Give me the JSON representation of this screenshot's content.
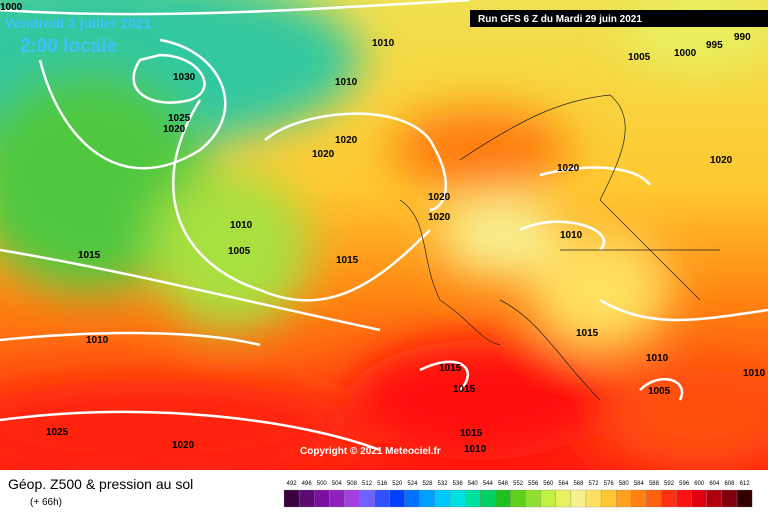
{
  "header": {
    "title": "Vendredi 2 juillet 2021",
    "time": "2:00 locale",
    "run": "Run GFS 6 Z du Mardi 29 juin 2021"
  },
  "isobar_labels": [
    "1000",
    "1010",
    "1005",
    "1000",
    "995",
    "990",
    "1030",
    "1010",
    "1025",
    "1020",
    "1020",
    "1020",
    "1020",
    "1020",
    "1020",
    "1020",
    "1010",
    "1005",
    "1015",
    "1015",
    "1010",
    "1010",
    "1015",
    "1010",
    "1010",
    "1015",
    "1015",
    "1005",
    "1015",
    "1010",
    "1025",
    "1020"
  ],
  "copyright": "Copyright © 2021 Meteociel.fr",
  "legend": {
    "title": "Géop. Z500 & pression au sol",
    "lead": "(+ 66h)",
    "scale": [
      492,
      496,
      500,
      504,
      508,
      512,
      516,
      520,
      524,
      528,
      532,
      536,
      540,
      544,
      548,
      552,
      556,
      560,
      564,
      568,
      572,
      576,
      580,
      584,
      588,
      592,
      596,
      600,
      604,
      608,
      612
    ],
    "colors": [
      "#3a0040",
      "#5a0a70",
      "#7a10a0",
      "#9020c0",
      "#a040e0",
      "#7060ff",
      "#3050ff",
      "#0040ff",
      "#0070ff",
      "#00a0ff",
      "#00c8ff",
      "#00e0e0",
      "#00e0a0",
      "#00d060",
      "#20c020",
      "#60d020",
      "#90e030",
      "#c0f040",
      "#e8f060",
      "#f8f090",
      "#ffe060",
      "#ffc830",
      "#ffa020",
      "#ff8010",
      "#ff6010",
      "#ff3010",
      "#ff1010",
      "#e00010",
      "#b00010",
      "#800010",
      "#300000"
    ]
  }
}
